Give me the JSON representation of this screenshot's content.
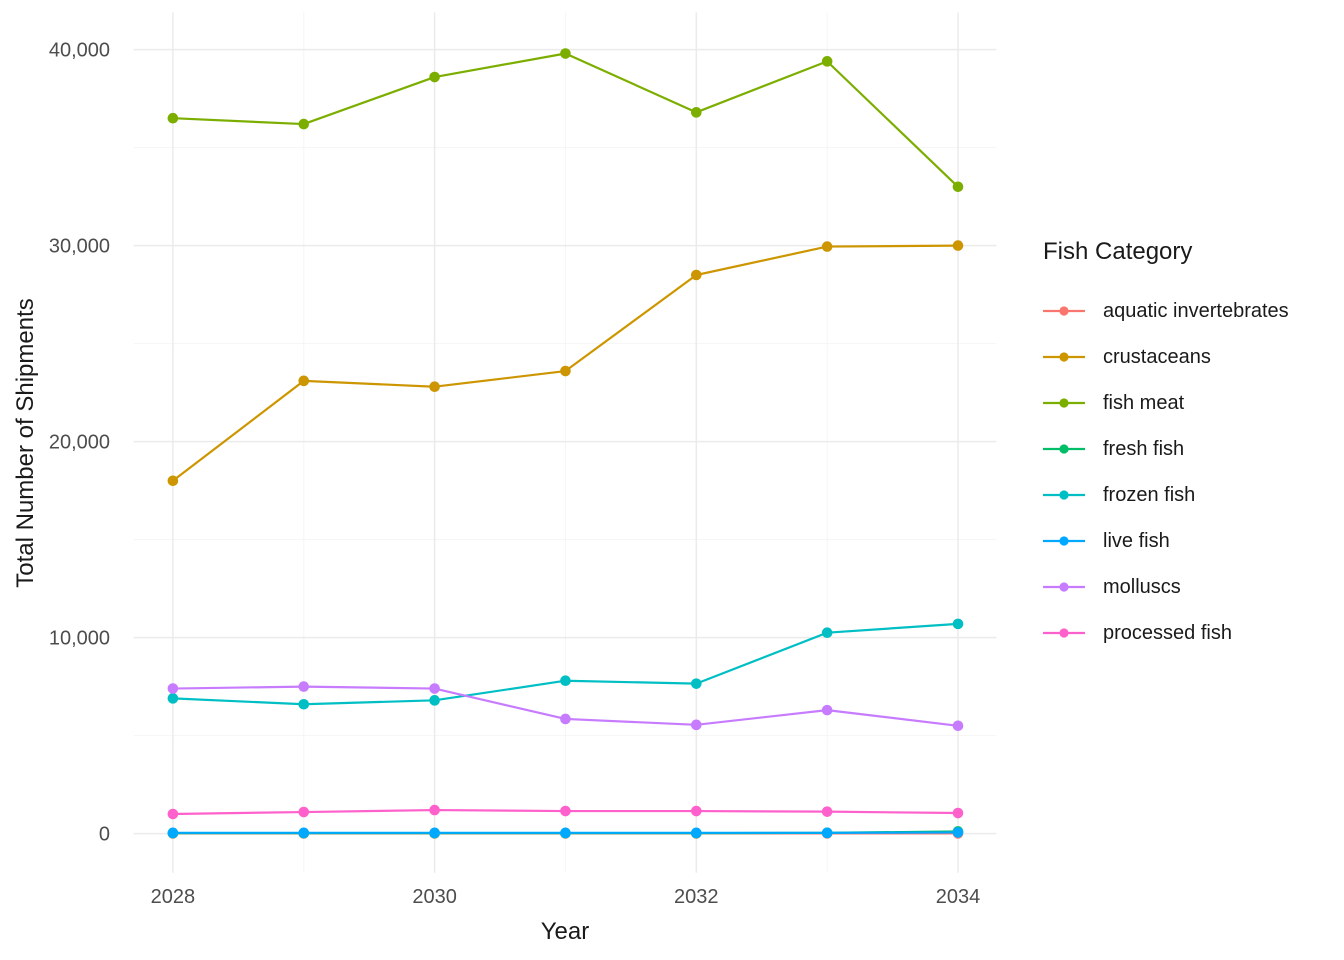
{
  "chart_data": {
    "type": "line",
    "title": "",
    "xlabel": "Year",
    "ylabel": "Total Number of Shipments",
    "legend_title": "Fish Category",
    "legend_position": "right",
    "grid": "major+minor, light gray on white (ggplot theme_minimal)",
    "x": [
      2028,
      2029,
      2030,
      2031,
      2032,
      2033,
      2034
    ],
    "x_ticks": [
      2028,
      2030,
      2032,
      2034
    ],
    "x_tick_labels": [
      "2028",
      "2030",
      "2032",
      "2034"
    ],
    "y_ticks": [
      0,
      10000,
      20000,
      30000,
      40000
    ],
    "y_tick_labels": [
      "0",
      "10,000",
      "20,000",
      "30,000",
      "40,000"
    ],
    "y_minor_ticks": [
      5000,
      15000,
      25000,
      35000
    ],
    "x_minor_ticks": [
      2029,
      2031,
      2033
    ],
    "ylim": [
      -2000,
      42000
    ],
    "xlim": [
      2027.7,
      2034.3
    ],
    "series": [
      {
        "name": "aquatic invertebrates",
        "color": "#F8766D",
        "values": [
          10,
          10,
          10,
          10,
          10,
          10,
          10
        ]
      },
      {
        "name": "crustaceans",
        "color": "#CD9600",
        "values": [
          18000,
          23100,
          22800,
          23600,
          28500,
          29950,
          30000
        ]
      },
      {
        "name": "fish meat",
        "color": "#7CAE00",
        "values": [
          36500,
          36200,
          38600,
          39800,
          36800,
          39400,
          33000
        ]
      },
      {
        "name": "fresh fish",
        "color": "#00BE67",
        "values": [
          20,
          20,
          20,
          20,
          20,
          40,
          110
        ]
      },
      {
        "name": "frozen fish",
        "color": "#00BFC4",
        "values": [
          6900,
          6600,
          6800,
          7800,
          7650,
          10250,
          10700
        ]
      },
      {
        "name": "live fish",
        "color": "#00A9FF",
        "values": [
          40,
          40,
          40,
          40,
          40,
          40,
          60
        ]
      },
      {
        "name": "molluscs",
        "color": "#C77CFF",
        "values": [
          7400,
          7500,
          7400,
          5850,
          5550,
          6300,
          5500
        ]
      },
      {
        "name": "processed fish",
        "color": "#FF61CC",
        "values": [
          1000,
          1100,
          1200,
          1150,
          1150,
          1120,
          1050
        ]
      }
    ],
    "style": {
      "major_grid_color": "#EBEBEB",
      "minor_grid_color": "#F5F5F5",
      "tick_label_color": "#4d4d4d",
      "axis_title_color": "#1a1a1a",
      "background": "#ffffff"
    }
  }
}
